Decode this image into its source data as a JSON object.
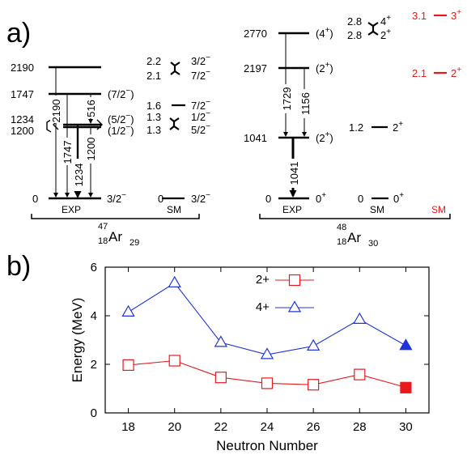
{
  "panel_a": {
    "label": "a)",
    "ar47": {
      "nucleus": {
        "mass": "47",
        "z": "18",
        "symbol": "Ar",
        "n": "29"
      },
      "exp_label": "EXP",
      "sm_label": "SM",
      "exp_levels": [
        {
          "energy": "2190",
          "spin": ""
        },
        {
          "energy": "1747",
          "spin_j": "(7/2",
          "spin_parity": "−",
          "spin_tail": ")"
        },
        {
          "energy": "1234",
          "spin_j": "(5/2",
          "spin_parity": "−",
          "spin_tail": ")"
        },
        {
          "energy": "1200",
          "spin_j": "(1/2",
          "spin_parity": "−",
          "spin_tail": ")"
        },
        {
          "energy": "0",
          "spin_j": "3/2",
          "spin_parity": "−",
          "spin_tail": ""
        }
      ],
      "transitions": [
        "2190",
        "1747",
        "1234",
        "1200",
        "516"
      ],
      "sm_levels": [
        {
          "energy": "2.2",
          "spin_j": "3/2",
          "spin_parity": "−"
        },
        {
          "energy": "2.1",
          "spin_j": "7/2",
          "spin_parity": "−"
        },
        {
          "energy": "1.6",
          "spin_j": "7/2",
          "spin_parity": "−"
        },
        {
          "energy": "1.3",
          "spin_j": "1/2",
          "spin_parity": "−"
        },
        {
          "energy": "1.3",
          "spin_j": "5/2",
          "spin_parity": "−"
        },
        {
          "energy": "0",
          "spin_j": "3/2",
          "spin_parity": "−"
        }
      ]
    },
    "ar48": {
      "nucleus": {
        "mass": "48",
        "z": "18",
        "symbol": "Ar",
        "n": "30"
      },
      "exp_label": "EXP",
      "sm_label": "SM",
      "sm_red_label": "SM",
      "exp_levels": [
        {
          "energy": "2770",
          "spin_j": "(4",
          "spin_parity": "+",
          "spin_tail": ")"
        },
        {
          "energy": "2197",
          "spin_j": "(2",
          "spin_parity": "+",
          "spin_tail": ")"
        },
        {
          "energy": "1041",
          "spin_j": "(2",
          "spin_parity": "+",
          "spin_tail": ")"
        },
        {
          "energy": "0",
          "spin_j": "0",
          "spin_parity": "+",
          "spin_tail": ""
        }
      ],
      "transitions": [
        "1729",
        "1156",
        "1041"
      ],
      "sm_levels": [
        {
          "energy": "2.8",
          "spin_j": "4",
          "spin_parity": "+"
        },
        {
          "energy": "2.8",
          "spin_j": "2",
          "spin_parity": "+"
        },
        {
          "energy": "1.2",
          "spin_j": "2",
          "spin_parity": "+"
        },
        {
          "energy": "0",
          "spin_j": "0",
          "spin_parity": "+"
        }
      ],
      "sm_red_levels": [
        {
          "energy": "3.1",
          "spin_j": "3",
          "spin_parity": "+"
        },
        {
          "energy": "2.1",
          "spin_j": "2",
          "spin_parity": "+"
        }
      ]
    }
  },
  "panel_b": {
    "label": "b)"
  },
  "colors": {
    "black": "#000000",
    "red": "#e8191d",
    "blue": "#1f35d6"
  },
  "chart_data": {
    "type": "line",
    "xlabel": "Neutron Number",
    "ylabel": "Energy (MeV)",
    "xlim": [
      17,
      31
    ],
    "ylim": [
      0,
      6
    ],
    "x_ticks": [
      18,
      20,
      22,
      24,
      26,
      28,
      30
    ],
    "y_ticks": [
      0,
      2,
      4,
      6
    ],
    "legend_position": "top-center",
    "grid": false,
    "series": [
      {
        "name": "2+",
        "color": "#e8191d",
        "marker": "square",
        "x": [
          18,
          20,
          22,
          24,
          26,
          28
        ],
        "values": [
          1.97,
          2.15,
          1.46,
          1.22,
          1.16,
          1.58
        ],
        "line_end_x": 30,
        "line_end_value": 1.05,
        "highlight": {
          "x": 30,
          "value": 1.04,
          "filled": true
        }
      },
      {
        "name": "4+",
        "color": "#1f35d6",
        "marker": "triangle",
        "x": [
          18,
          20,
          22,
          24,
          26,
          28
        ],
        "values": [
          4.15,
          5.35,
          2.9,
          2.4,
          2.75,
          3.85
        ],
        "line_end_x": 30,
        "line_end_value": 2.77,
        "highlight": {
          "x": 30,
          "value": 2.77,
          "filled": true
        }
      }
    ]
  }
}
